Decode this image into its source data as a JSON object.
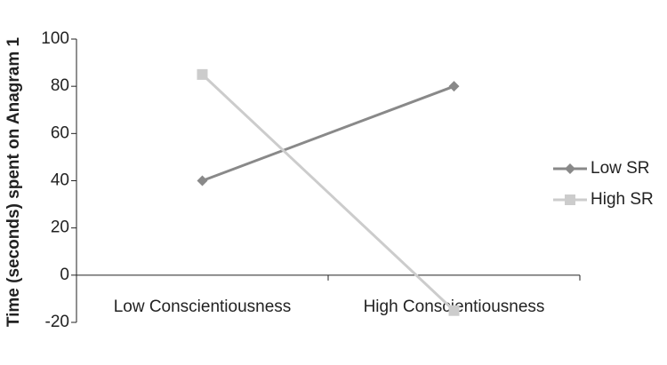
{
  "chart_data": {
    "type": "line",
    "y_label": "Time (seconds) spent on Anagram 1",
    "categories": [
      "Low Conscientiousness",
      "High Conscientiousness"
    ],
    "series": [
      {
        "name": "Low SR",
        "color": "#898989",
        "marker": "diamond",
        "values": [
          40,
          80
        ]
      },
      {
        "name": "High SR",
        "color": "#cccccc",
        "marker": "square",
        "values": [
          85,
          -15
        ]
      }
    ],
    "ylim": [
      -20,
      100
    ],
    "yticks": [
      -20,
      0,
      20,
      40,
      60,
      80,
      100
    ],
    "grid": false,
    "legend": "right"
  }
}
